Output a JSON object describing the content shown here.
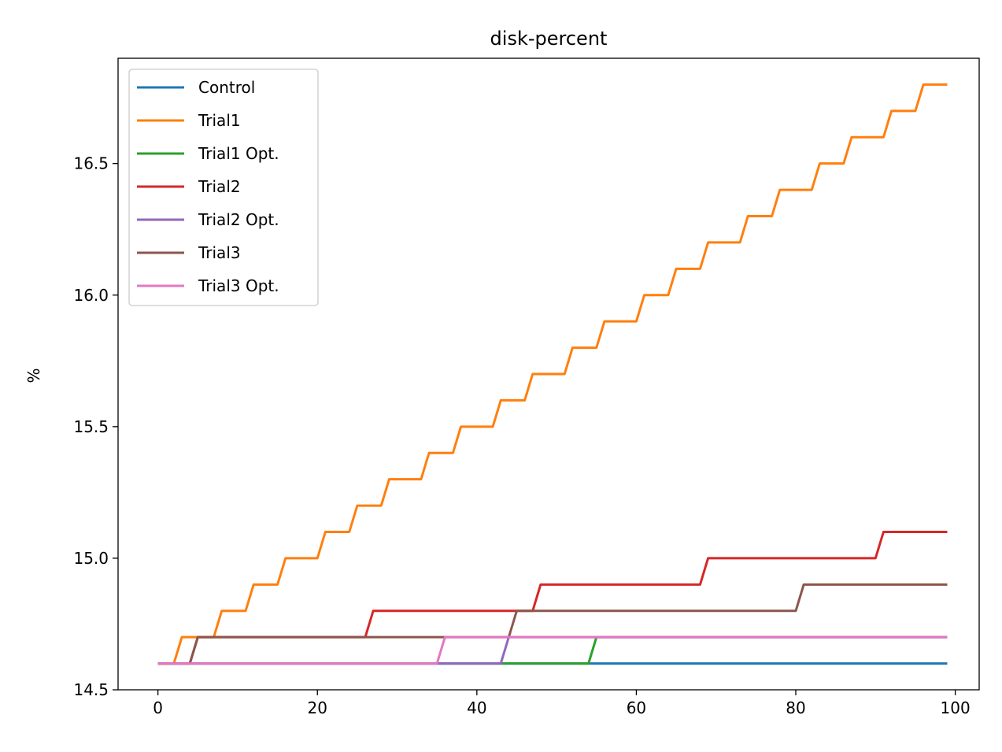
{
  "chart_data": {
    "type": "line",
    "title": "disk-percent",
    "xlabel": "",
    "ylabel": "%",
    "xlim": [
      -5,
      103
    ],
    "ylim": [
      14.5,
      16.9
    ],
    "xticks": [
      0,
      20,
      40,
      60,
      80,
      100
    ],
    "xtick_labels": [
      "0",
      "20",
      "40",
      "60",
      "80",
      "100"
    ],
    "yticks": [
      14.5,
      15.0,
      15.5,
      16.0,
      16.5
    ],
    "ytick_labels": [
      "14.5",
      "15.0",
      "15.5",
      "16.0",
      "16.5"
    ],
    "grid": false,
    "legend_position": "top-left",
    "series": [
      {
        "name": "Control",
        "color": "#1f77b4",
        "steps": [
          [
            0,
            14.6
          ]
        ]
      },
      {
        "name": "Trial1",
        "color": "#ff7f0e",
        "steps": [
          [
            0,
            14.6
          ],
          [
            3,
            14.7
          ],
          [
            8,
            14.8
          ],
          [
            12,
            14.9
          ],
          [
            16,
            15.0
          ],
          [
            21,
            15.1
          ],
          [
            25,
            15.2
          ],
          [
            29,
            15.3
          ],
          [
            34,
            15.4
          ],
          [
            38,
            15.5
          ],
          [
            43,
            15.6
          ],
          [
            47,
            15.7
          ],
          [
            52,
            15.8
          ],
          [
            56,
            15.9
          ],
          [
            61,
            16.0
          ],
          [
            65,
            16.1
          ],
          [
            69,
            16.2
          ],
          [
            74,
            16.3
          ],
          [
            78,
            16.4
          ],
          [
            83,
            16.5
          ],
          [
            87,
            16.6
          ],
          [
            92,
            16.7
          ],
          [
            96,
            16.8
          ]
        ]
      },
      {
        "name": "Trial1 Opt.",
        "color": "#2ca02c",
        "steps": [
          [
            0,
            14.6
          ],
          [
            55,
            14.7
          ]
        ]
      },
      {
        "name": "Trial2",
        "color": "#d62728",
        "steps": [
          [
            0,
            14.6
          ],
          [
            5,
            14.7
          ],
          [
            27,
            14.8
          ],
          [
            48,
            14.9
          ],
          [
            69,
            15.0
          ],
          [
            91,
            15.1
          ]
        ]
      },
      {
        "name": "Trial2 Opt.",
        "color": "#9467bd",
        "steps": [
          [
            0,
            14.6
          ],
          [
            44,
            14.7
          ]
        ]
      },
      {
        "name": "Trial3",
        "color": "#8c564b",
        "steps": [
          [
            0,
            14.6
          ],
          [
            5,
            14.7
          ],
          [
            45,
            14.8
          ],
          [
            81,
            14.9
          ]
        ]
      },
      {
        "name": "Trial3 Opt.",
        "color": "#e377c2",
        "steps": [
          [
            0,
            14.6
          ],
          [
            36,
            14.7
          ]
        ]
      }
    ],
    "x_end": 99
  }
}
